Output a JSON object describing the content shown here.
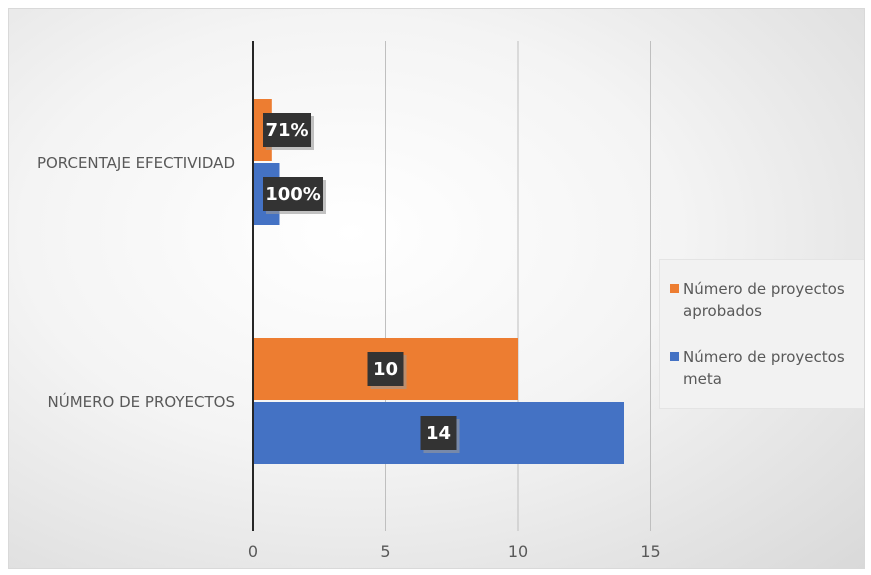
{
  "chart_data": {
    "type": "bar",
    "orientation": "horizontal",
    "categories": [
      "NÚMERO DE PROYECTOS",
      "PORCENTAJE EFECTIVIDAD"
    ],
    "series": [
      {
        "name": "Número de proyectos meta",
        "color": "#4472C4",
        "values": [
          14,
          1
        ],
        "data_labels": [
          "14",
          "100%"
        ]
      },
      {
        "name": "Número de proyectos aprobados",
        "color": "#ED7D31",
        "values": [
          10,
          0.71
        ],
        "data_labels": [
          "10",
          "71%"
        ]
      }
    ],
    "xlim": [
      0,
      15
    ],
    "xticks": [
      "0",
      "5",
      "10",
      "15"
    ],
    "grid": true,
    "legend_position": "right"
  }
}
